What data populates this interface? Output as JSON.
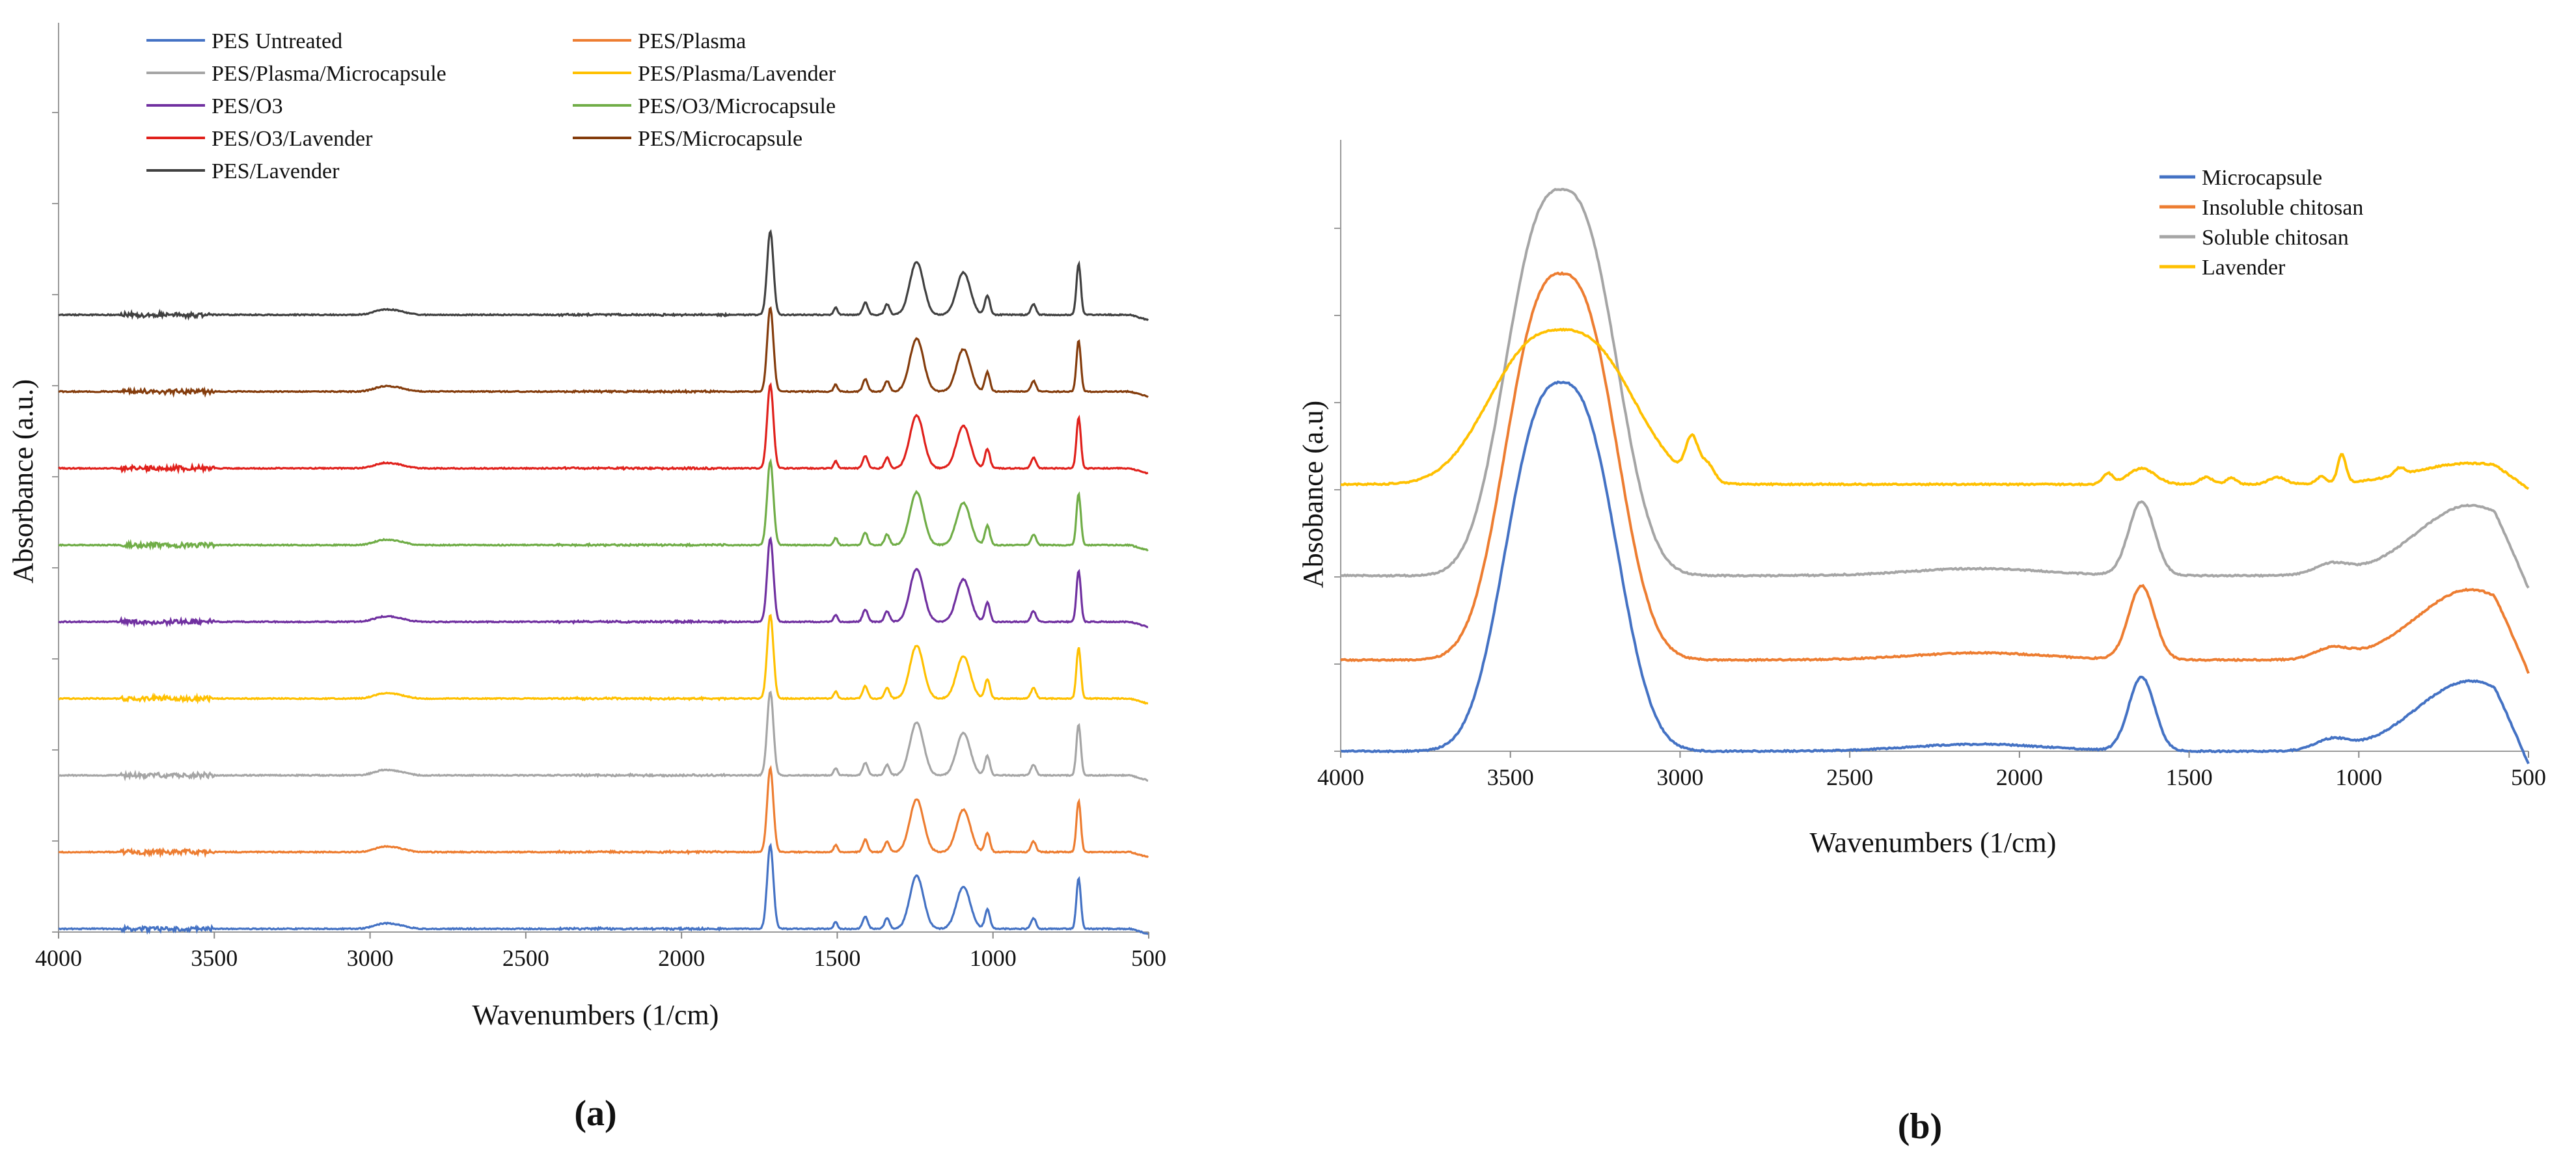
{
  "figure": {
    "panel_a_label": "(a)",
    "panel_b_label": "(b)"
  },
  "chart_data": [
    {
      "type": "line",
      "panel": "a",
      "title": "",
      "xlabel": "Wavenumbers (1/cm)",
      "ylabel": "Absorbance (a.u.)",
      "xlim": [
        4000,
        500
      ],
      "x_reversed": true,
      "x_ticks": [
        "4000",
        "3500",
        "3000",
        "2500",
        "2000",
        "1500",
        "1000",
        "500"
      ],
      "legend_position": "top-left",
      "stacked_offsets": true,
      "peaks_cm-1": [
        2960,
        2910,
        1715,
        1505,
        1410,
        1340,
        1245,
        1095,
        1018,
        870,
        725
      ],
      "series": [
        {
          "name": "PES Untreated",
          "color": "#4472C4",
          "baseline": 0.0
        },
        {
          "name": "PES/Plasma",
          "color": "#ED7D31",
          "baseline": 1.0
        },
        {
          "name": "PES/Plasma/Microcapsule",
          "color": "#A5A5A5",
          "baseline": 2.0
        },
        {
          "name": "PES/Plasma/Lavender",
          "color": "#FFC000",
          "baseline": 3.0
        },
        {
          "name": "PES/O3",
          "color": "#7030A0",
          "baseline": 4.0
        },
        {
          "name": "PES/O3/Microcapsule",
          "color": "#70AD47",
          "baseline": 5.0
        },
        {
          "name": "PES/O3/Lavender",
          "color": "#E0201B",
          "baseline": 6.0
        },
        {
          "name": "PES/Microcapsule",
          "color": "#843C0C",
          "baseline": 7.0
        },
        {
          "name": "PES/Lavender",
          "color": "#404040",
          "baseline": 8.0
        }
      ]
    },
    {
      "type": "line",
      "panel": "b",
      "title": "",
      "xlabel": "Wavenumbers (1/cm)",
      "ylabel": "Absobance (a.u)",
      "xlim": [
        4000,
        500
      ],
      "x_reversed": true,
      "x_ticks": [
        "4000",
        "3500",
        "3000",
        "2500",
        "2000",
        "1500",
        "1000",
        "500"
      ],
      "legend_position": "top-right",
      "series": [
        {
          "name": "Microcapsule",
          "color": "#4472C4",
          "baseline": 0.0,
          "oh_peak": 1.05
        },
        {
          "name": "Insoluble chitosan",
          "color": "#ED7D31",
          "baseline": 0.26,
          "oh_peak": 1.36
        },
        {
          "name": "Soluble chitosan",
          "color": "#A5A5A5",
          "baseline": 0.5,
          "oh_peak": 1.6
        },
        {
          "name": "Lavender",
          "color": "#FFC000",
          "baseline": 0.76,
          "oh_peak": 1.2
        }
      ]
    }
  ]
}
